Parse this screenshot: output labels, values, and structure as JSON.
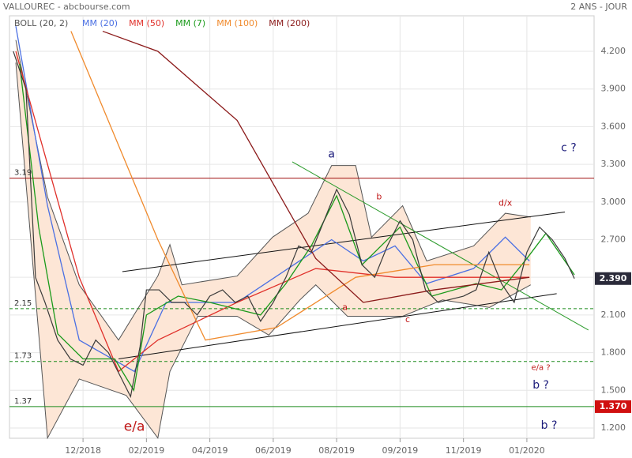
{
  "header": {
    "title": "VALLOUREC - abcbourse.com",
    "period": "2 ANS - JOUR"
  },
  "chart_data": {
    "type": "line",
    "xlim": [
      -1.16,
      8.06
    ],
    "ylim": [
      1.118,
      4.483
    ],
    "xticks": [
      {
        "value": 0,
        "label": "12/2018"
      },
      {
        "value": 1,
        "label": "02/2019"
      },
      {
        "value": 2,
        "label": "04/2019"
      },
      {
        "value": 3,
        "label": "06/2019"
      },
      {
        "value": 4,
        "label": "08/2019"
      },
      {
        "value": 5,
        "label": "09/2019"
      },
      {
        "value": 6,
        "label": "11/2019"
      },
      {
        "value": 7,
        "label": "01/2020"
      }
    ],
    "yticks": [
      {
        "value": 1.2,
        "label": "1.200"
      },
      {
        "value": 1.5,
        "label": "1.500"
      },
      {
        "value": 1.8,
        "label": "1.800"
      },
      {
        "value": 2.1,
        "label": "2.100"
      },
      {
        "value": 2.4,
        "label": "2.400"
      },
      {
        "value": 2.7,
        "label": "2.700"
      },
      {
        "value": 3.0,
        "label": "3.000"
      },
      {
        "value": 3.3,
        "label": "3.300"
      },
      {
        "value": 3.6,
        "label": "3.600"
      },
      {
        "value": 3.9,
        "label": "3.900"
      },
      {
        "value": 4.2,
        "label": "4.200"
      }
    ],
    "grid": true,
    "bands": {
      "name": "BOLL (20, 2)",
      "color": "#555555",
      "fill": "#fde6d6",
      "upper": {
        "x": [
          -1.06,
          -0.56,
          -0.06,
          0.56,
          1.18,
          1.37,
          1.56,
          2.43,
          2.99,
          3.55,
          3.92,
          4.3,
          4.55,
          5.04,
          5.42,
          6.16,
          6.66,
          7.06
        ],
        "values": [
          4.29,
          3.04,
          2.34,
          1.9,
          2.41,
          2.66,
          2.34,
          2.41,
          2.72,
          2.91,
          3.29,
          3.29,
          2.72,
          2.97,
          2.53,
          2.65,
          2.91,
          2.88
        ]
      },
      "lower": {
        "x": [
          -1.06,
          -0.56,
          -0.06,
          0.68,
          1.18,
          1.37,
          1.81,
          2.43,
          2.93,
          3.42,
          3.67,
          4.17,
          4.55,
          5.04,
          5.67,
          6.41,
          7.06
        ],
        "values": [
          4.11,
          1.12,
          1.59,
          1.46,
          1.12,
          1.65,
          2.09,
          2.09,
          1.94,
          2.22,
          2.34,
          2.09,
          2.09,
          2.09,
          2.22,
          2.16,
          2.34
        ]
      }
    },
    "series": [
      {
        "name": "MM (20)",
        "color": "#4a6fe3",
        "x": [
          -1.06,
          -0.56,
          -0.06,
          0.81,
          1.31,
          2.43,
          3.92,
          4.42,
          4.92,
          5.42,
          6.16,
          6.66,
          7.04
        ],
        "values": [
          4.4,
          2.97,
          1.9,
          1.65,
          2.2,
          2.2,
          2.7,
          2.53,
          2.65,
          2.35,
          2.47,
          2.72,
          2.53
        ]
      },
      {
        "name": "MM (50)",
        "color": "#e0302a",
        "x": [
          -1.06,
          -0.06,
          0.56,
          1.18,
          2.43,
          3.67,
          4.92,
          6.16,
          7.04
        ],
        "values": [
          4.2,
          2.4,
          1.65,
          1.9,
          2.2,
          2.47,
          2.4,
          2.4,
          2.4
        ]
      },
      {
        "name": "MM (7)",
        "color": "#1a9a1a",
        "x": [
          -1.0,
          -0.7,
          -0.4,
          0,
          0.5,
          0.8,
          1.0,
          1.5,
          2,
          2.8,
          3.2,
          3.6,
          4.0,
          4.4,
          5.0,
          5.5,
          6.2,
          6.6,
          7.0,
          7.3,
          7.75
        ],
        "values": [
          4.1,
          2.8,
          1.95,
          1.75,
          1.75,
          1.5,
          2.1,
          2.25,
          2.2,
          2.1,
          2.35,
          2.65,
          3.05,
          2.5,
          2.8,
          2.25,
          2.35,
          2.3,
          2.55,
          2.75,
          2.42
        ]
      },
      {
        "name": "MM (100)",
        "color": "#f08a2c",
        "x": [
          -0.19,
          1.18,
          1.93,
          3.05,
          4.3,
          5.54,
          7.04
        ],
        "values": [
          4.36,
          2.7,
          1.9,
          2.0,
          2.4,
          2.5,
          2.5
        ]
      },
      {
        "name": "MM (200)",
        "color": "#8b1a1a",
        "x": [
          0.31,
          1.18,
          2.43,
          3.67,
          4.42,
          5.54,
          7.04
        ],
        "values": [
          4.36,
          4.2,
          3.65,
          2.55,
          2.2,
          2.3,
          2.4
        ]
      }
    ],
    "close": {
      "color": "#3a3a3a",
      "x": [
        -1.1,
        -0.9,
        -0.75,
        -0.6,
        -0.4,
        -0.2,
        0,
        0.2,
        0.4,
        0.6,
        0.75,
        0.9,
        1.0,
        1.2,
        1.4,
        1.6,
        1.8,
        2.0,
        2.2,
        2.4,
        2.6,
        2.8,
        3.0,
        3.2,
        3.4,
        3.6,
        3.8,
        4.0,
        4.2,
        4.4,
        4.6,
        4.8,
        5.0,
        5.2,
        5.4,
        5.6,
        6.0,
        6.2,
        6.4,
        6.6,
        6.8,
        7.0,
        7.2,
        7.4,
        7.6,
        7.75
      ],
      "values": [
        4.2,
        3.9,
        2.4,
        2.2,
        1.9,
        1.75,
        1.7,
        1.9,
        1.8,
        1.6,
        1.45,
        1.85,
        2.3,
        2.3,
        2.2,
        2.2,
        2.1,
        2.25,
        2.3,
        2.2,
        2.25,
        2.05,
        2.2,
        2.4,
        2.65,
        2.6,
        2.85,
        3.1,
        2.9,
        2.5,
        2.4,
        2.65,
        2.85,
        2.7,
        2.3,
        2.2,
        2.25,
        2.3,
        2.6,
        2.35,
        2.2,
        2.6,
        2.8,
        2.7,
        2.55,
        2.39
      ]
    },
    "last_price": {
      "value": 2.39,
      "label": "2.390"
    },
    "levels": [
      {
        "value": 3.19,
        "label": "3.19",
        "color": "#a01010",
        "dashed": false
      },
      {
        "value": 2.15,
        "label": "2.15",
        "color": "#1a8a1a",
        "dashed": true
      },
      {
        "value": 1.73,
        "label": "1.73",
        "color": "#1a8a1a",
        "dashed": true
      },
      {
        "value": 1.37,
        "label": "1.37",
        "color": "#1a8a1a",
        "dashed": false,
        "tag": {
          "value": 1.37,
          "label": "1.370"
        }
      }
    ],
    "trendlines": [
      {
        "color": "#111111",
        "x": [
          0.62,
          7.6
        ],
        "y": [
          2.445,
          2.92
        ]
      },
      {
        "color": "#111111",
        "x": [
          0.56,
          7.47
        ],
        "y": [
          1.75,
          2.27
        ]
      },
      {
        "color": "#2a9a2a",
        "x": [
          3.3,
          7.97
        ],
        "y": [
          3.32,
          1.98
        ]
      }
    ],
    "annotations": [
      {
        "text": "a",
        "x": 3.92,
        "y": 3.38,
        "color": "#1a1a7a",
        "size": 14
      },
      {
        "text": "b",
        "x": 4.67,
        "y": 3.04,
        "color": "#c01818",
        "size": 11
      },
      {
        "text": "c ?",
        "x": 7.66,
        "y": 3.43,
        "color": "#1a1a7a",
        "size": 14
      },
      {
        "text": "d/x",
        "x": 6.66,
        "y": 2.99,
        "color": "#c01818",
        "size": 11
      },
      {
        "text": "a",
        "x": 4.13,
        "y": 2.16,
        "color": "#c01818",
        "size": 11
      },
      {
        "text": "c",
        "x": 5.12,
        "y": 2.06,
        "color": "#c01818",
        "size": 11
      },
      {
        "text": "e/a",
        "x": 0.81,
        "y": 1.21,
        "color": "#c01818",
        "size": 17
      },
      {
        "text": "e/a ?",
        "x": 7.22,
        "y": 1.68,
        "color": "#c01818",
        "size": 10
      },
      {
        "text": "b ?",
        "x": 7.22,
        "y": 1.54,
        "color": "#1a1a7a",
        "size": 14
      },
      {
        "text": "b ?",
        "x": 7.35,
        "y": 1.22,
        "color": "#1a1a7a",
        "size": 14
      }
    ]
  }
}
